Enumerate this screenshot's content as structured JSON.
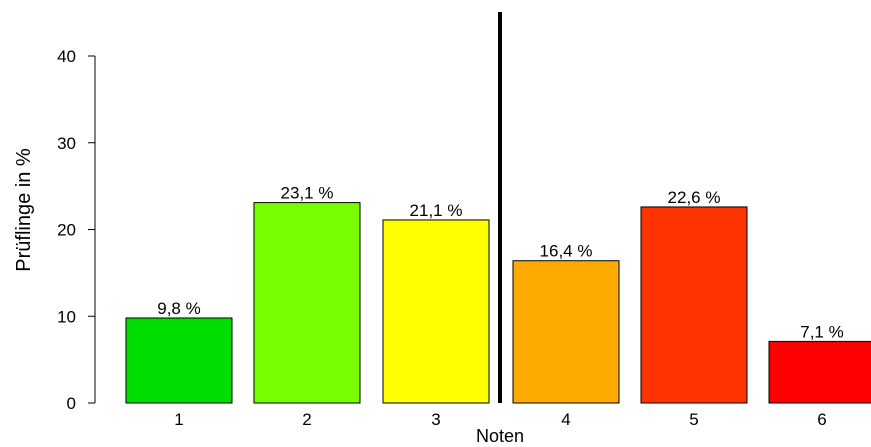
{
  "chart_data": {
    "type": "bar",
    "categories": [
      "1",
      "2",
      "3",
      "4",
      "5",
      "6"
    ],
    "values": [
      9.8,
      23.1,
      21.1,
      16.4,
      22.6,
      7.1
    ],
    "data_labels": [
      "9,8 %",
      "23,1 %",
      "21,1 %",
      "16,4 %",
      "22,6 %",
      "7,1 %"
    ],
    "colors": [
      "#00dd00",
      "#77ff00",
      "#ffff00",
      "#ffaa00",
      "#ff3300",
      "#ff0000"
    ],
    "xlabel": "Noten",
    "ylabel": "Prüflinge in %",
    "ylim": [
      0,
      40
    ],
    "yticks": [
      0,
      10,
      20,
      30,
      40
    ],
    "ytick_labels": [
      "0",
      "10",
      "20",
      "30",
      "40"
    ],
    "divider_after_category": "3",
    "grid": false,
    "legend": "none"
  }
}
